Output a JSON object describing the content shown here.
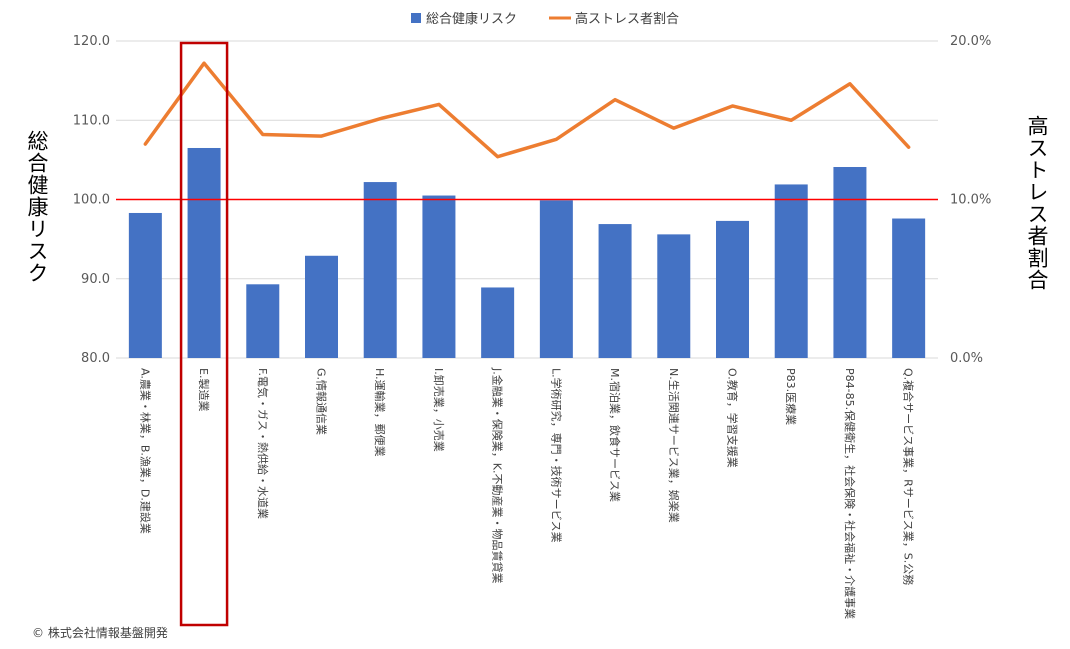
{
  "chart_data": {
    "type": "bar",
    "legend": {
      "position": "top"
    },
    "categories": [
      "A.農業・林業，B.漁業，D.建設業",
      "E.製造業",
      "F.電気・ガス・熱供給・水道業",
      "G.情報通信業",
      "H.運輸業，郵便業",
      "I.卸売業，小売業",
      "J.金融業・保険業，K.不動産業・物品賃貸業",
      "L.学術研究，専門・技術サービス業",
      "M.宿泊業，飲食サービス業",
      "N.生活関連サービス業，娯楽業",
      "O.教育，学習支援業",
      "P83.医療業",
      "P84-85.保健衛生，社会保険・社会福祉・介護事業",
      "Q.複合サービス事業，Rサービス業，S.公務"
    ],
    "series": [
      {
        "name": "総合健康リスク",
        "type": "bar",
        "axis": "left",
        "color": "#4472C4",
        "values": [
          98.3,
          106.5,
          89.3,
          92.9,
          102.2,
          100.5,
          88.9,
          99.9,
          96.9,
          95.6,
          97.3,
          101.9,
          104.1,
          97.6
        ]
      },
      {
        "name": "高ストレス者割合",
        "type": "line",
        "axis": "right",
        "color": "#ED7D31",
        "values": [
          13.5,
          18.6,
          14.1,
          14.0,
          15.1,
          16.0,
          12.7,
          13.8,
          16.3,
          14.5,
          15.9,
          15.0,
          17.3,
          13.3
        ]
      }
    ],
    "ylabel": "総合健康リスク",
    "y2label": "高ストレス者割合",
    "ylim": [
      80,
      120
    ],
    "y2lim": [
      0,
      20
    ],
    "yticks": [
      "80.0",
      "90.0",
      "100.0",
      "110.0",
      "120.0"
    ],
    "y2ticks": [
      "0.0%",
      "10.0%",
      "20.0%"
    ],
    "reference_line": {
      "y": 100,
      "color": "#FF0000"
    },
    "highlight": {
      "category_index": 1,
      "color": "#C00000"
    },
    "grid": true
  },
  "copyright": "© 株式会社情報基盤開発"
}
